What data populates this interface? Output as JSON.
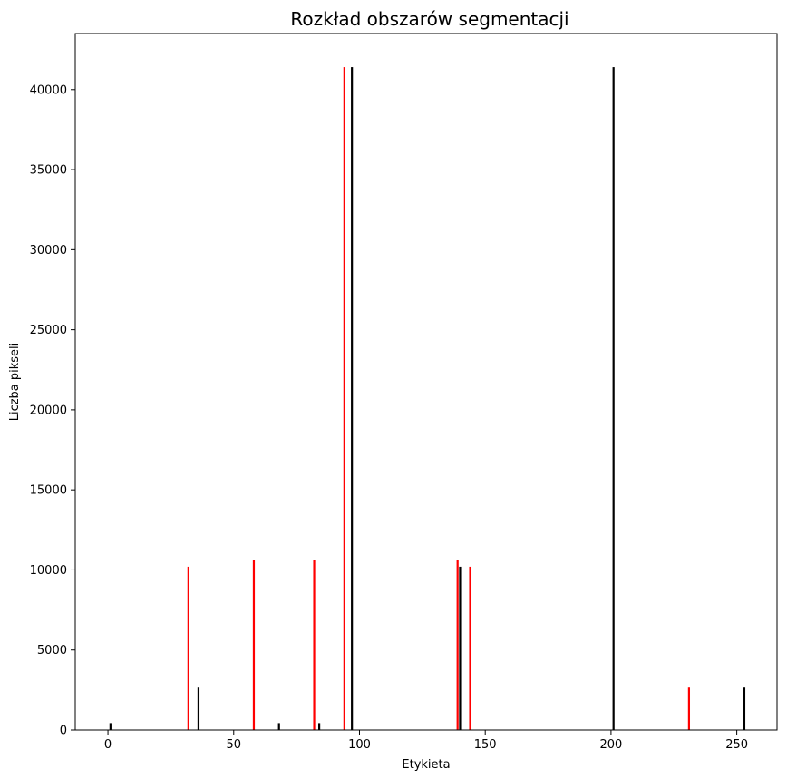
{
  "chart_data": {
    "type": "bar",
    "title": "Rozkład obszarów segmentacji",
    "xlabel": "Etykieta",
    "ylabel": "Liczba pikseli",
    "xlim": [
      -13,
      266
    ],
    "ylim": [
      0,
      43500
    ],
    "xticks": [
      0,
      50,
      100,
      150,
      200,
      250
    ],
    "yticks": [
      0,
      5000,
      10000,
      15000,
      20000,
      25000,
      30000,
      35000,
      40000
    ],
    "grid": false,
    "series": [
      {
        "color": "#ff0000",
        "x": [
          32,
          58,
          82,
          94,
          139,
          144,
          231
        ],
        "values": [
          10200,
          10600,
          10600,
          41400,
          10600,
          10200,
          2650
        ]
      },
      {
        "color": "#000000",
        "x": [
          1,
          36,
          68,
          84,
          97,
          140,
          201,
          253
        ],
        "values": [
          430,
          2650,
          430,
          430,
          41400,
          10200,
          41400,
          2650
        ]
      }
    ]
  }
}
